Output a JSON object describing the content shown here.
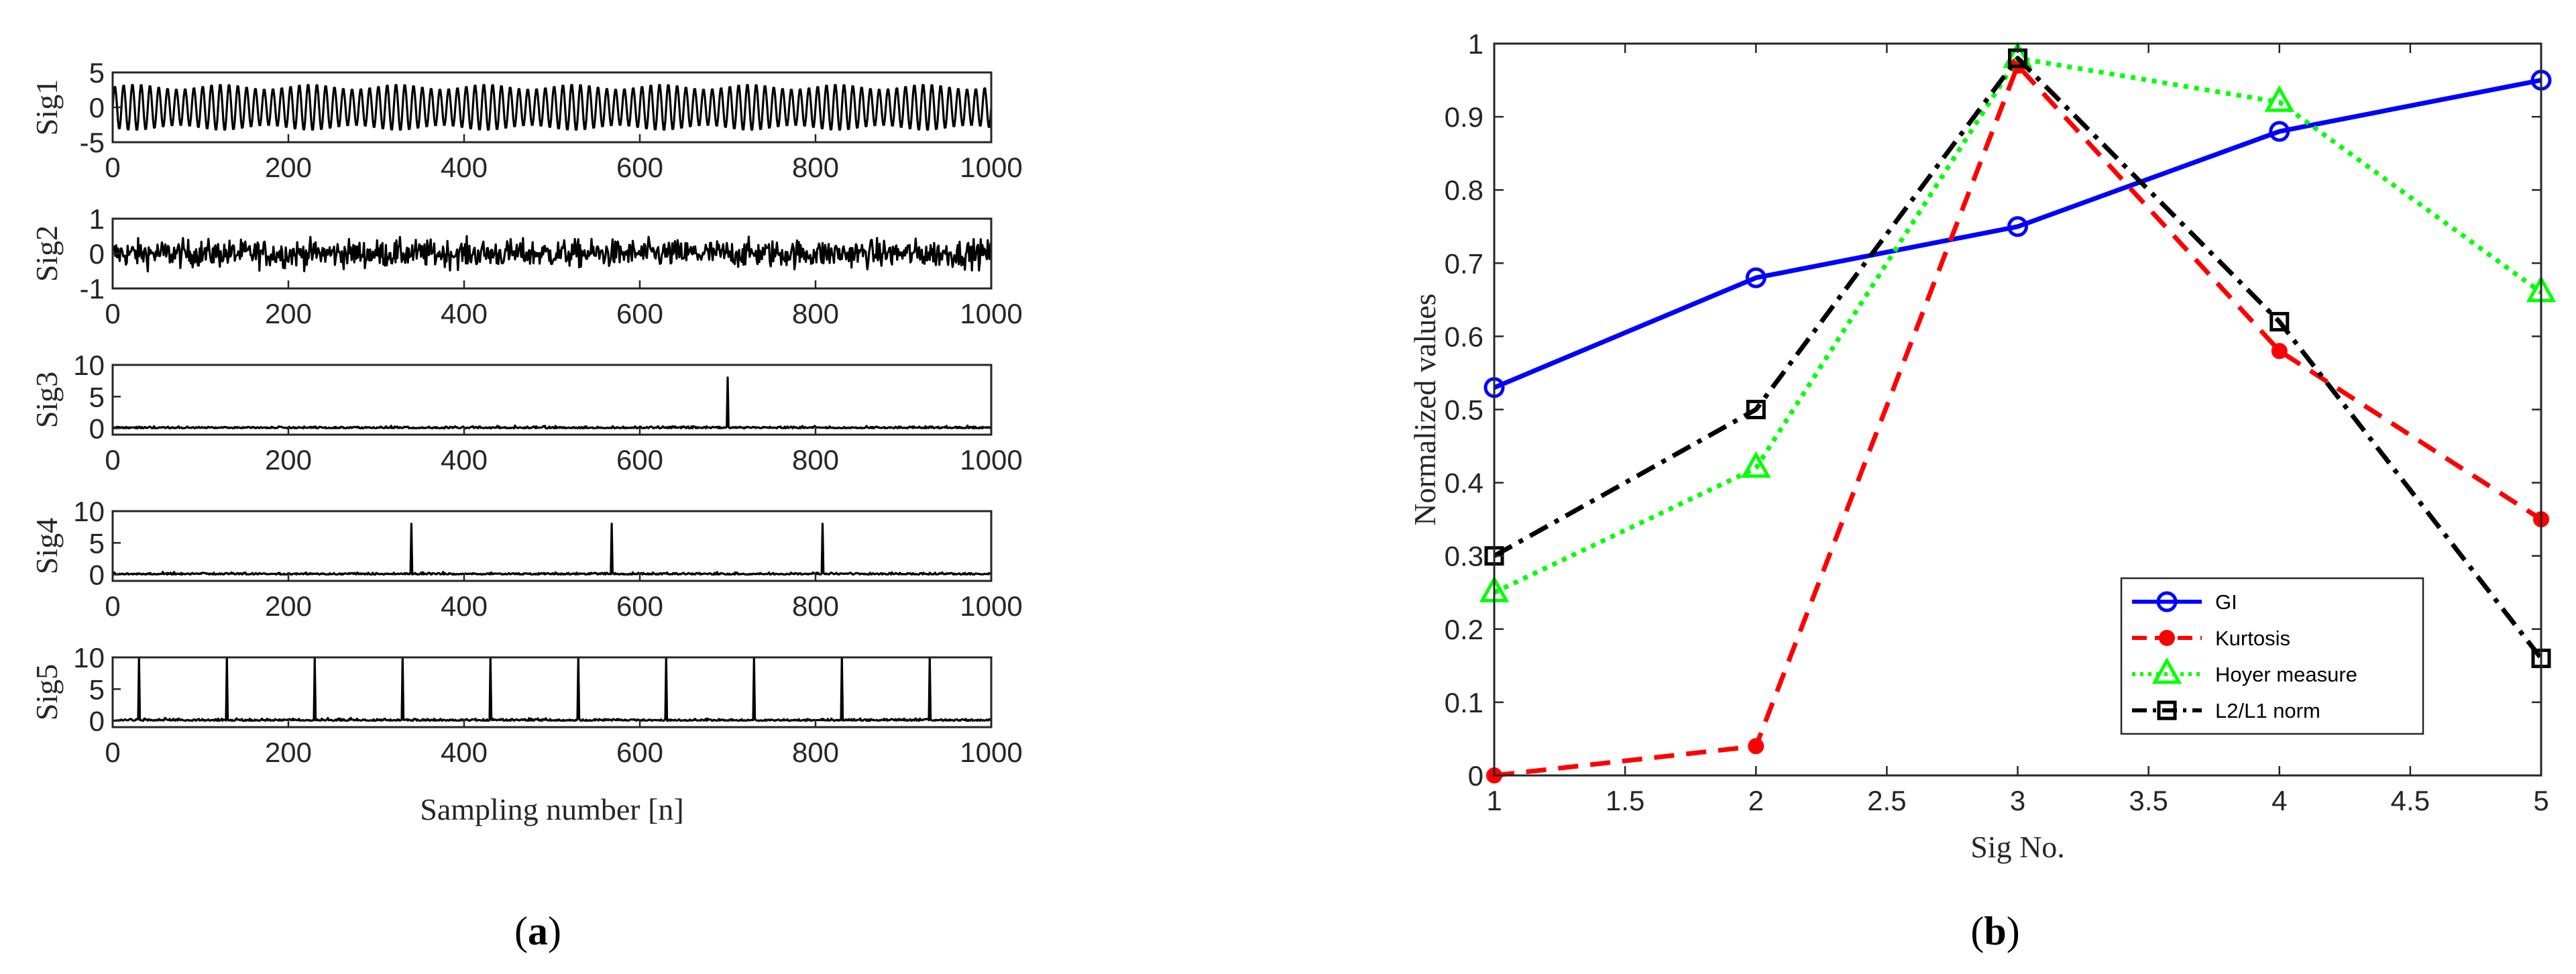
{
  "colors": {
    "axis": "#262626",
    "signal": "#000000",
    "GI": "#0000ff",
    "Kurtosis": "#ff0000",
    "Hoyer": "#00ff00",
    "L2L1": "#000000"
  },
  "chart_data": [
    {
      "panel": "a",
      "caption": "a",
      "type": "line",
      "xlabel": "Sampling number [n]",
      "x_ticks": [
        "0",
        "200",
        "400",
        "600",
        "800",
        "1000"
      ],
      "xlim": [
        0,
        1000
      ],
      "subplots": [
        {
          "name": "Sig1",
          "ylabel": "Sig1",
          "ylim": [
            -5,
            5
          ],
          "y_ticks": [
            "5",
            "0",
            "-5"
          ],
          "y_tick_values": [
            5,
            0,
            -5
          ],
          "kind": "sinusoid",
          "amplitude": 3,
          "cycles": 100,
          "envelope_cycles": 10,
          "spikes": []
        },
        {
          "name": "Sig2",
          "ylabel": "Sig2",
          "ylim": [
            -1,
            1
          ],
          "y_ticks": [
            "1",
            "0",
            "-1"
          ],
          "y_tick_values": [
            1,
            0,
            -1
          ],
          "kind": "noise",
          "amplitude": 0.35,
          "spikes": []
        },
        {
          "name": "Sig3",
          "ylabel": "Sig3",
          "ylim": [
            -1,
            10
          ],
          "y_ticks": [
            "10",
            "5",
            "0"
          ],
          "y_tick_values": [
            10,
            5,
            0
          ],
          "kind": "impulses",
          "amplitude": 0.25,
          "spikes": [
            700
          ],
          "spike_height": 8
        },
        {
          "name": "Sig4",
          "ylabel": "Sig4",
          "ylim": [
            -1,
            10
          ],
          "y_ticks": [
            "10",
            "5",
            "0"
          ],
          "y_tick_values": [
            10,
            5,
            0
          ],
          "kind": "impulses",
          "amplitude": 0.25,
          "spikes": [
            340,
            568,
            808
          ],
          "spike_height": 8
        },
        {
          "name": "Sig5",
          "ylabel": "Sig5",
          "ylim": [
            -1,
            10
          ],
          "y_ticks": [
            "10",
            "5",
            "0"
          ],
          "y_tick_values": [
            10,
            5,
            0
          ],
          "kind": "impulses",
          "amplitude": 0.25,
          "spikes": [
            30,
            130,
            230,
            330,
            430,
            530,
            630,
            730,
            830,
            930
          ],
          "spike_height": 10
        }
      ]
    },
    {
      "panel": "b",
      "caption": "b",
      "type": "line",
      "xlabel": "Sig No.",
      "ylabel": "Normalized values",
      "xlim": [
        1,
        5
      ],
      "ylim": [
        0,
        1
      ],
      "x_ticks": [
        "1",
        "1.5",
        "2",
        "2.5",
        "3",
        "3.5",
        "4",
        "4.5",
        "5"
      ],
      "x_tick_values": [
        1,
        1.5,
        2,
        2.5,
        3,
        3.5,
        4,
        4.5,
        5
      ],
      "y_ticks": [
        "0",
        "0.1",
        "0.2",
        "0.3",
        "0.4",
        "0.5",
        "0.6",
        "0.7",
        "0.8",
        "0.9",
        "1"
      ],
      "y_tick_values": [
        0,
        0.1,
        0.2,
        0.3,
        0.4,
        0.5,
        0.6,
        0.7,
        0.8,
        0.9,
        1
      ],
      "legend_position": "bottom-right",
      "x": [
        1,
        2,
        3,
        4,
        5
      ],
      "series": [
        {
          "name": "GI",
          "color": "#0000ff",
          "style": "solid",
          "marker": "circle",
          "values": [
            0.53,
            0.68,
            0.75,
            0.88,
            0.95
          ]
        },
        {
          "name": "Kurtosis",
          "color": "#ff0000",
          "style": "dashed",
          "marker": "dot",
          "values": [
            0.0,
            0.04,
            0.97,
            0.58,
            0.35
          ]
        },
        {
          "name": "Hoyer measure",
          "color": "#00ff00",
          "style": "dotted",
          "marker": "triangle",
          "values": [
            0.25,
            0.42,
            0.98,
            0.92,
            0.66
          ]
        },
        {
          "name": "L2/L1 norm",
          "color": "#000000",
          "style": "dashdot",
          "marker": "square",
          "values": [
            0.3,
            0.5,
            0.98,
            0.62,
            0.16
          ]
        }
      ]
    }
  ]
}
